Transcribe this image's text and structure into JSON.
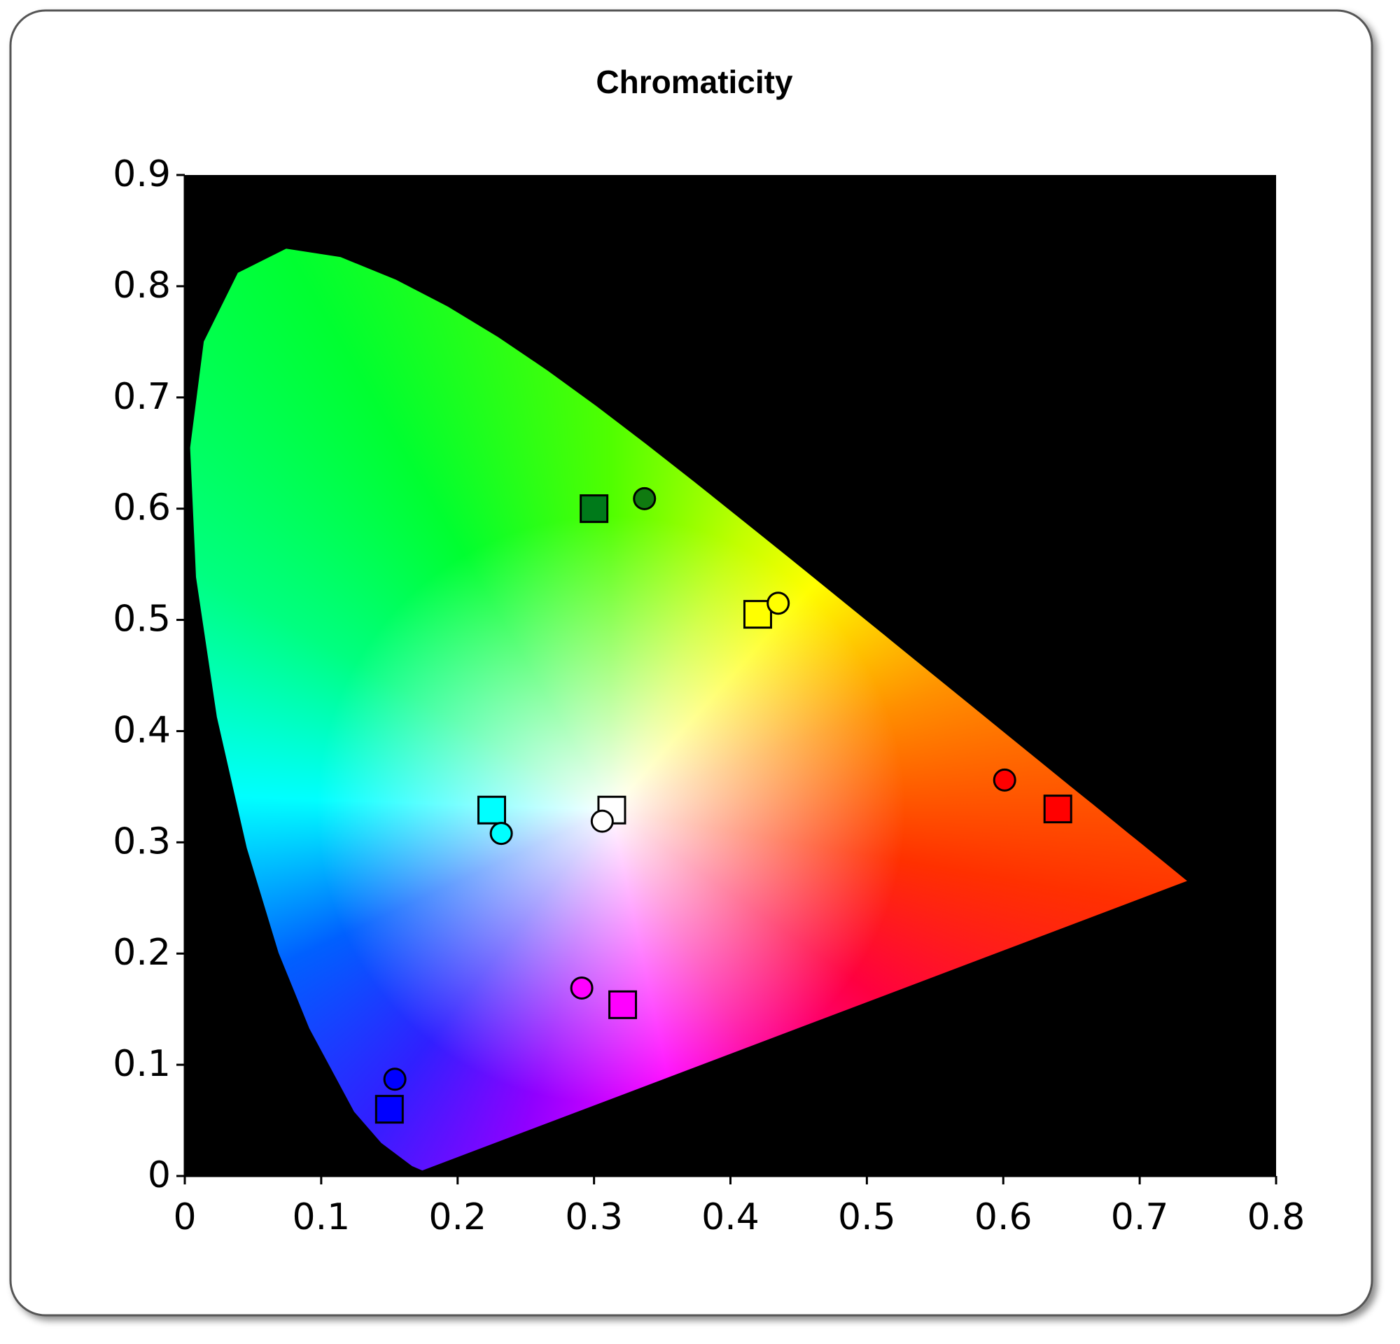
{
  "chart_data": {
    "type": "scatter",
    "title": "Chromaticity",
    "xlim": [
      0,
      0.8
    ],
    "xticks": [
      0,
      0.1,
      0.2,
      0.3,
      0.4,
      0.5,
      0.6,
      0.7,
      0.8
    ],
    "ylim": [
      0,
      0.9
    ],
    "yticks": [
      0,
      0.1,
      0.2,
      0.3,
      0.4,
      0.5,
      0.6,
      0.7,
      0.8,
      0.9
    ],
    "background": "#000000",
    "series": [
      {
        "marker": "square",
        "x": [
          0.3,
          0.42,
          0.225,
          0.313,
          0.64,
          0.321,
          0.15
        ],
        "values": [
          0.6,
          0.505,
          0.329,
          0.329,
          0.33,
          0.154,
          0.06
        ],
        "colors": [
          "#007a1a",
          "#ffff00",
          "#00ffff",
          "#ffffff",
          "#ff0000",
          "#ff00ff",
          "#0000ff"
        ]
      },
      {
        "marker": "circle",
        "x": [
          0.337,
          0.435,
          0.232,
          0.306,
          0.601,
          0.291,
          0.154
        ],
        "values": [
          0.609,
          0.515,
          0.308,
          0.319,
          0.356,
          0.169,
          0.087
        ],
        "colors": [
          "#107a10",
          "#ffff00",
          "#00ffff",
          "#ffffff",
          "#ff0000",
          "#ff00ff",
          "#0000ff"
        ]
      }
    ]
  }
}
